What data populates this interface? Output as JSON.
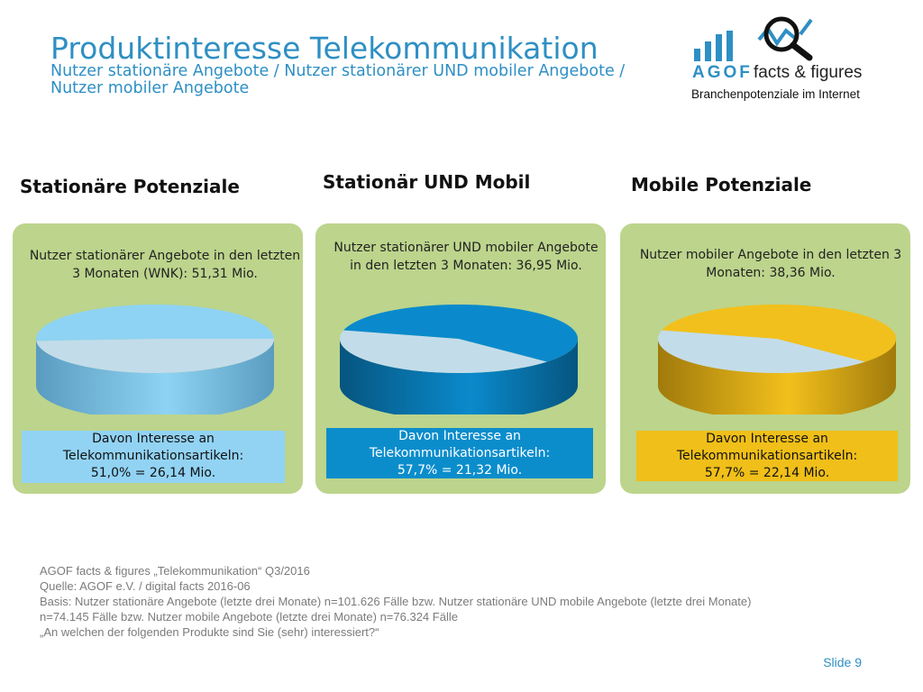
{
  "header": {
    "title": "Produktinteresse Telekommunikation",
    "subtitle_line1": "Nutzer stationäre Angebote / Nutzer stationärer UND mobiler Angebote /",
    "subtitle_line2": "Nutzer mobiler Angebote"
  },
  "logo": {
    "brand": "AGOF",
    "name": "facts & figures",
    "tagline": "Branchenpotenziale im Internet",
    "color": "#2e8fc4"
  },
  "panels": [
    {
      "heading": "Stationäre Potenziale",
      "description": "Nutzer stationärer Angebote in den letzten 3 Monaten (WNK): 51,31 Mio.",
      "band_line1": "Davon Interesse an",
      "band_line2": "Telekommunikationsartikeln:",
      "band_line3": "51,0% = 26,14 Mio.",
      "band_color": "#92d3f4",
      "band_text_color": "#111111",
      "pie_color": "#8ed3f3",
      "pie_side_color": "#5a9cc0"
    },
    {
      "heading": "Stationär UND Mobil",
      "description": "Nutzer stationärer UND mobiler Angebote in den letzten 3 Monaten: 36,95 Mio.",
      "band_line1": "Davon Interesse an",
      "band_line2": "Telekommunikationsartikeln:",
      "band_line3": "57,7% = 21,32 Mio.",
      "band_color": "#0b8dcc",
      "band_text_color": "#ffffff",
      "pie_color": "#0a8acc",
      "pie_side_color": "#06557f"
    },
    {
      "heading": "Mobile Potenziale",
      "description": "Nutzer mobiler Angebote in den letzten 3 Monaten: 38,36 Mio.",
      "band_line1": "Davon Interesse an",
      "band_line2": "Telekommunikationsartikeln:",
      "band_line3": "57,7% = 22,14 Mio.",
      "band_color": "#f0bf19",
      "band_text_color": "#111111",
      "pie_color": "#f2c01c",
      "pie_side_color": "#a07a0c"
    }
  ],
  "chart_data": [
    {
      "type": "pie",
      "title": "Stationäre Potenziale",
      "categories": [
        "Interesse an Telekommunikationsartikeln",
        "Rest"
      ],
      "values": [
        51.0,
        49.0
      ],
      "total_mio": 51.31,
      "interest_mio": 26.14,
      "colors": [
        "#8ed3f3",
        "#c3dcea"
      ]
    },
    {
      "type": "pie",
      "title": "Stationär UND Mobil",
      "categories": [
        "Interesse an Telekommunikationsartikeln",
        "Rest"
      ],
      "values": [
        57.7,
        42.3
      ],
      "total_mio": 36.95,
      "interest_mio": 21.32,
      "colors": [
        "#0a8acc",
        "#c3dcea"
      ]
    },
    {
      "type": "pie",
      "title": "Mobile Potenziale",
      "categories": [
        "Interesse an Telekommunikationsartikeln",
        "Rest"
      ],
      "values": [
        57.7,
        42.3
      ],
      "total_mio": 38.36,
      "interest_mio": 22.14,
      "colors": [
        "#f2c01c",
        "#c3dcea"
      ]
    }
  ],
  "footer": {
    "line1": "AGOF facts & figures „Telekommunikation“ Q3/2016",
    "line2": "Quelle: AGOF e.V. / digital facts 2016-06",
    "line3": "Basis: Nutzer stationäre Angebote (letzte drei Monate) n=101.626 Fälle bzw. Nutzer stationäre UND mobile Angebote (letzte drei Monate)",
    "line4": "n=74.145 Fälle bzw. Nutzer mobile Angebote (letzte drei Monate) n=76.324 Fälle",
    "line5": "„An welchen der folgenden Produkte sind Sie (sehr) interessiert?“"
  },
  "slide_label": "Slide 9"
}
